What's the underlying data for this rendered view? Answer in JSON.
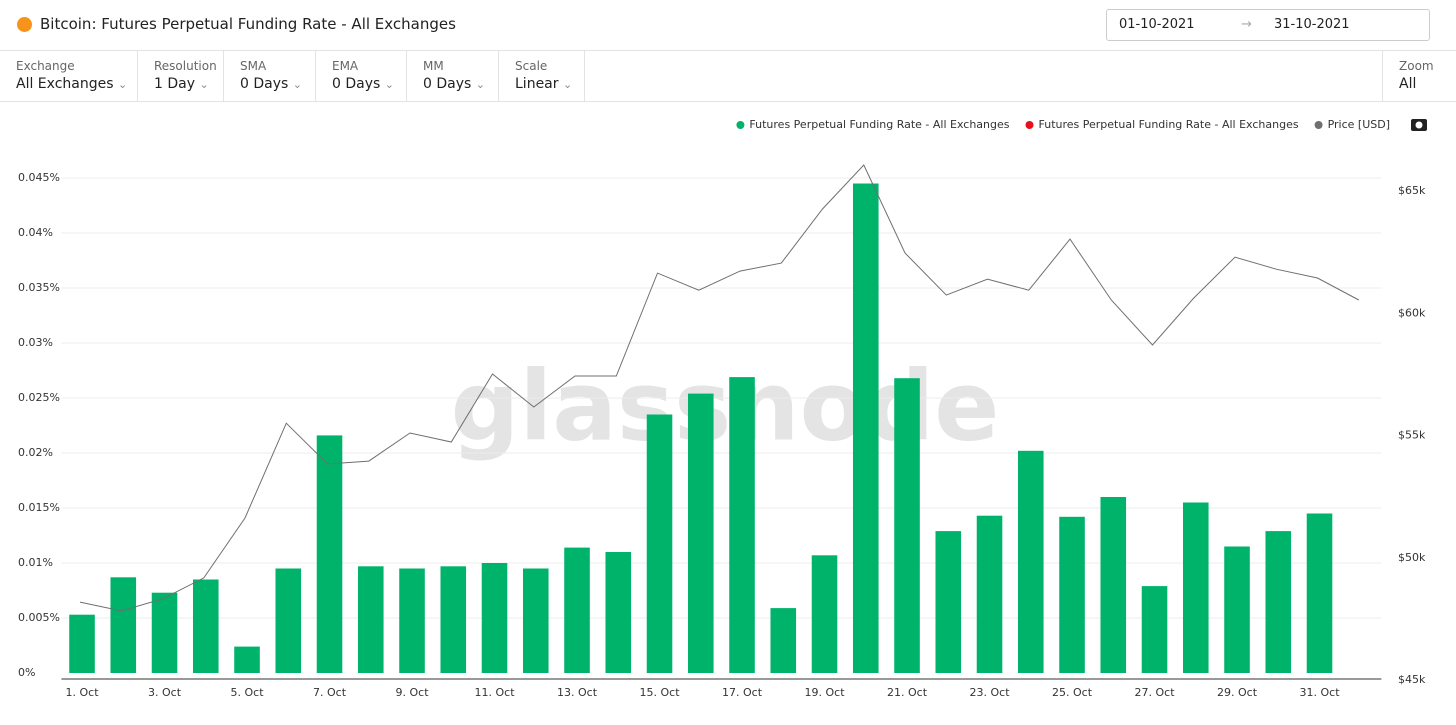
{
  "header": {
    "title": "Bitcoin: Futures Perpetual Funding Rate - All Exchanges",
    "date_from": "01-10-2021",
    "date_to": "31-10-2021"
  },
  "controls": [
    {
      "label": "Exchange",
      "value": "All Exchanges"
    },
    {
      "label": "Resolution",
      "value": "1 Day"
    },
    {
      "label": "SMA",
      "value": "0 Days"
    },
    {
      "label": "EMA",
      "value": "0 Days"
    },
    {
      "label": "MM",
      "value": "0 Days"
    },
    {
      "label": "Scale",
      "value": "Linear"
    }
  ],
  "zoom": {
    "label": "Zoom",
    "value": "All"
  },
  "watermark": "glassnode",
  "chart_data": {
    "type": "bar",
    "categories": [
      "1. Oct",
      null,
      "3. Oct",
      null,
      "5. Oct",
      null,
      "7. Oct",
      null,
      "9. Oct",
      null,
      "11. Oct",
      null,
      "13. Oct",
      null,
      "15. Oct",
      null,
      "17. Oct",
      null,
      "19. Oct",
      null,
      "21. Oct",
      null,
      "23. Oct",
      null,
      "25. Oct",
      null,
      "27. Oct",
      null,
      "29. Oct",
      null,
      "31. Oct",
      null
    ],
    "series": [
      {
        "name": "Futures Perpetual Funding Rate - All Exchanges",
        "color": "#00b36b",
        "type": "bar",
        "values": [
          0.0053,
          0.0087,
          0.0073,
          0.0085,
          0.0024,
          0.0095,
          0.0216,
          0.0097,
          0.0095,
          0.0097,
          0.01,
          0.0095,
          0.0114,
          0.011,
          0.0235,
          0.0254,
          0.0269,
          0.0059,
          0.0107,
          0.0445,
          0.0268,
          0.0129,
          0.0143,
          0.0202,
          0.0142,
          0.016,
          0.0079,
          0.0155,
          0.0115,
          0.0129,
          0.0145,
          null
        ]
      },
      {
        "name": "Futures Perpetual Funding Rate - All Exchanges",
        "color": "#e8101c",
        "type": "bar",
        "values": [
          null,
          null,
          null,
          null,
          null,
          null,
          null,
          null,
          null,
          null,
          null,
          null,
          null,
          null,
          null,
          null,
          null,
          null,
          null,
          null,
          null,
          null,
          null,
          null,
          null,
          null,
          null,
          null,
          null,
          null,
          null,
          null
        ]
      },
      {
        "name": "Price [USD]",
        "color": "#6f6f6f",
        "type": "line",
        "axis": "y2",
        "values": [
          47900,
          47540,
          48030,
          48890,
          51340,
          55220,
          53550,
          53670,
          54820,
          54450,
          57230,
          55880,
          57150,
          57150,
          61360,
          60660,
          61440,
          61770,
          63980,
          65780,
          62180,
          60460,
          61110,
          60660,
          62750,
          60260,
          58420,
          60340,
          62010,
          61520,
          61160,
          60260
        ]
      }
    ],
    "ylim": [
      0,
      0.05
    ],
    "yticks": [
      {
        "value": 0,
        "label": "0%"
      },
      {
        "value": 0.005,
        "label": "0.005%"
      },
      {
        "value": 0.01,
        "label": "0.01%"
      },
      {
        "value": 0.015,
        "label": "0.015%"
      },
      {
        "value": 0.02,
        "label": "0.02%"
      },
      {
        "value": 0.025,
        "label": "0.025%"
      },
      {
        "value": 0.03,
        "label": "0.03%"
      },
      {
        "value": 0.035,
        "label": "0.035%"
      },
      {
        "value": 0.04,
        "label": "0.04%"
      },
      {
        "value": 0.045,
        "label": "0.045%"
      }
    ],
    "y2lim": [
      45000,
      67500
    ],
    "y2ticks": [
      {
        "value": 45000,
        "label": "$45k"
      },
      {
        "value": 50000,
        "label": "$50k"
      },
      {
        "value": 55000,
        "label": "$55k"
      },
      {
        "value": 60000,
        "label": "$60k"
      },
      {
        "value": 65000,
        "label": "$65k"
      }
    ],
    "grid": true
  }
}
